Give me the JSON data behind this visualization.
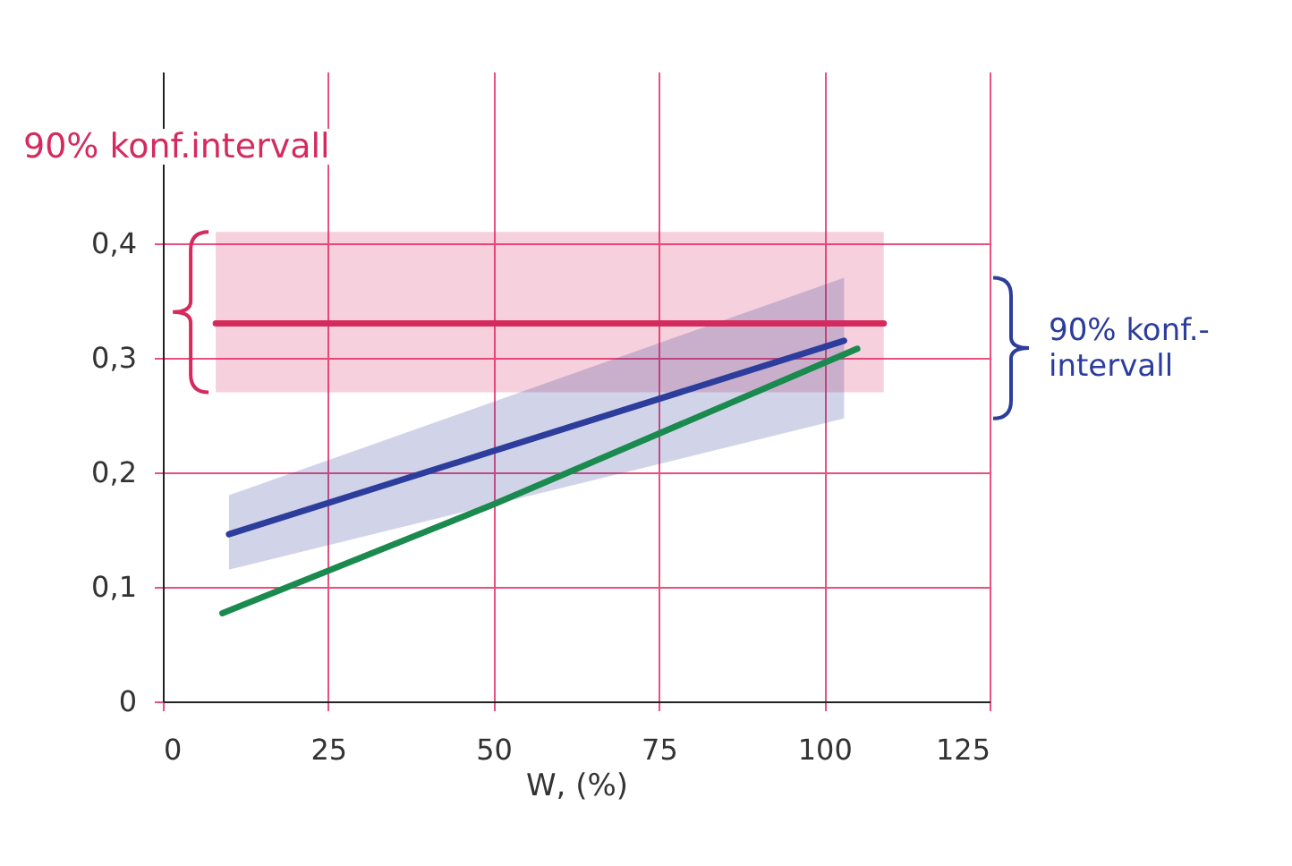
{
  "chart_data": {
    "type": "line",
    "xlabel": "W, (%)",
    "annotations": [
      "90% konf.intervall",
      "90% konf.-intervall"
    ],
    "series": [
      {
        "color": "#d42a5e",
        "x": [
          8,
          109
        ],
        "values": [
          0.33,
          0.33
        ],
        "lower": [
          0.27,
          0.27
        ],
        "upper": [
          0.41,
          0.41
        ]
      },
      {
        "color": "#2c3d9c",
        "x": [
          10,
          103
        ],
        "values": [
          0.146,
          0.315
        ],
        "lower": [
          0.115,
          0.247
        ],
        "upper": [
          0.18,
          0.37
        ]
      },
      {
        "color": "#1a8a4e",
        "x": [
          9,
          50,
          105
        ],
        "values": [
          0.077,
          0.172,
          0.308
        ]
      }
    ],
    "xlim": [
      0,
      125
    ],
    "xticks": [
      0,
      25,
      50,
      75,
      100,
      125
    ],
    "ylim": [
      0,
      0.55
    ],
    "yticks": [
      0,
      {
        "value": 0.1,
        "label": "0,1"
      },
      {
        "value": 0.2,
        "label": "0,2"
      },
      {
        "value": 0.3,
        "label": "0,3"
      },
      {
        "value": 0.4,
        "label": "0,4"
      }
    ],
    "grid": true,
    "marker": "none",
    "line_style": "solid"
  }
}
